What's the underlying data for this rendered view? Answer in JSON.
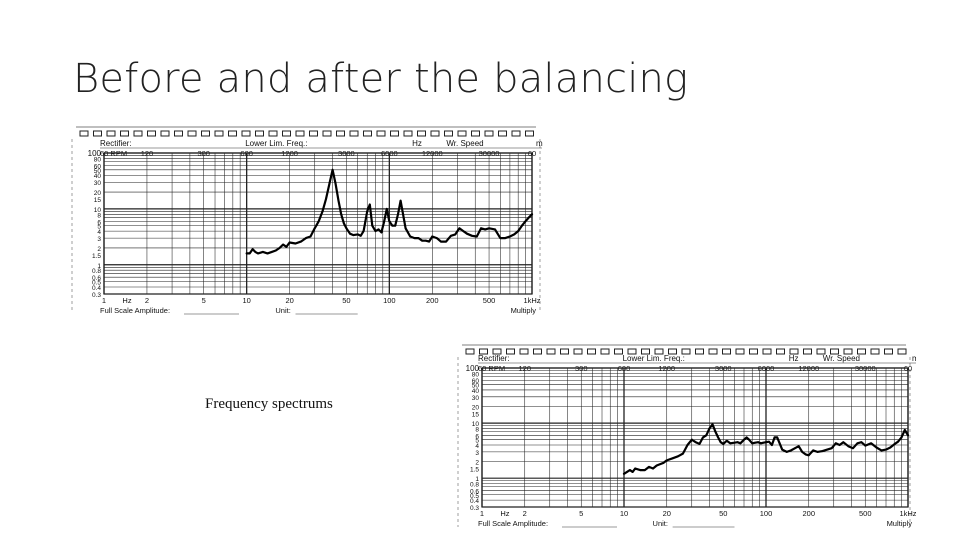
{
  "slide": {
    "title": "Before and after the balancing",
    "caption": "Frequency spectrums"
  },
  "chart_common": {
    "header_labels": [
      "Rectifier:",
      "Lower Lim. Freq.:",
      "Hz",
      "Wr. Speed",
      "m"
    ],
    "rpm_row": [
      "60 RPM",
      "120",
      "300",
      "600",
      "1200",
      "3000",
      "6000",
      "12000",
      "30000",
      "60"
    ],
    "y_ticks": [
      "100",
      "80",
      "60",
      "50",
      "40",
      "30",
      "20",
      "15",
      "10",
      "8",
      "6",
      "5",
      "4",
      "3",
      "2",
      "1.5",
      "1",
      "0.8",
      "0.6",
      "0.5",
      "0.4",
      "0.3"
    ],
    "x_ticks": [
      "1",
      "Hz",
      "2",
      "5",
      "10",
      "20",
      "50",
      "100",
      "200",
      "500",
      "1kHz"
    ],
    "footer_left": "Full Scale Amplitude:",
    "footer_mid": "Unit:",
    "footer_right": "Multiply"
  },
  "chart_data": [
    {
      "type": "line",
      "id": "before",
      "x_scale": "log",
      "y_scale": "log",
      "xlim": [
        1,
        1000
      ],
      "ylim": [
        0.3,
        100
      ],
      "x": [
        10,
        10.5,
        11,
        11.5,
        12,
        13,
        14,
        15,
        16,
        17,
        18,
        19,
        20,
        22,
        24,
        26,
        28,
        30,
        32,
        34,
        36,
        38,
        40,
        42,
        44,
        46,
        48,
        50,
        53,
        56,
        60,
        63,
        66,
        70,
        73,
        76,
        80,
        84,
        88,
        92,
        96,
        100,
        105,
        110,
        115,
        120,
        130,
        140,
        150,
        160,
        170,
        180,
        190,
        200,
        215,
        230,
        250,
        270,
        290,
        310,
        330,
        350,
        380,
        410,
        440,
        470,
        500,
        550,
        600,
        650,
        700,
        750,
        800,
        850,
        900,
        950,
        1000
      ],
      "y": [
        1.6,
        1.6,
        1.9,
        1.7,
        1.6,
        1.7,
        1.6,
        1.7,
        1.8,
        2.0,
        2.3,
        2.1,
        2.5,
        2.4,
        2.6,
        3.0,
        3.2,
        4.5,
        6.0,
        9.0,
        15.0,
        28.0,
        50.0,
        28.0,
        14.0,
        8.0,
        5.5,
        4.5,
        3.6,
        3.4,
        3.5,
        3.3,
        4.0,
        9.0,
        12.0,
        5.0,
        4.0,
        4.3,
        3.8,
        6.0,
        10.0,
        6.0,
        5.0,
        5.0,
        8.0,
        14.0,
        4.5,
        3.2,
        3.0,
        3.0,
        2.7,
        2.7,
        2.6,
        3.2,
        3.0,
        2.6,
        2.6,
        3.3,
        3.5,
        4.5,
        4.0,
        3.6,
        3.3,
        3.2,
        4.5,
        4.3,
        4.5,
        4.3,
        3.0,
        3.0,
        3.2,
        3.5,
        4.0,
        5.0,
        6.0,
        7.0,
        8.0
      ]
    },
    {
      "type": "line",
      "id": "after",
      "x_scale": "log",
      "y_scale": "log",
      "xlim": [
        1,
        1000
      ],
      "ylim": [
        0.3,
        100
      ],
      "x": [
        10,
        10.5,
        11,
        11.5,
        12,
        13,
        14,
        15,
        16,
        17,
        18,
        19,
        20,
        22,
        24,
        26,
        28,
        30,
        32,
        34,
        36,
        38,
        40,
        42,
        44,
        46,
        48,
        50,
        53,
        56,
        60,
        63,
        66,
        70,
        73,
        76,
        80,
        84,
        88,
        92,
        96,
        100,
        105,
        110,
        115,
        120,
        130,
        140,
        150,
        160,
        170,
        180,
        190,
        200,
        215,
        230,
        250,
        270,
        290,
        310,
        330,
        350,
        380,
        410,
        440,
        470,
        500,
        550,
        600,
        650,
        700,
        750,
        800,
        850,
        900,
        950,
        1000
      ],
      "y": [
        1.2,
        1.3,
        1.4,
        1.3,
        1.5,
        1.4,
        1.4,
        1.6,
        1.5,
        1.7,
        1.8,
        1.9,
        2.1,
        2.3,
        2.5,
        2.8,
        4.0,
        5.0,
        4.5,
        4.2,
        5.5,
        6.0,
        8.0,
        9.5,
        7.0,
        5.5,
        4.5,
        4.2,
        4.8,
        4.3,
        4.4,
        4.5,
        4.3,
        5.0,
        5.5,
        5.0,
        4.3,
        4.4,
        4.5,
        4.3,
        4.4,
        4.5,
        4.6,
        4.0,
        5.5,
        5.5,
        3.3,
        3.0,
        3.2,
        3.5,
        3.8,
        3.0,
        2.7,
        2.6,
        3.2,
        3.0,
        3.1,
        3.3,
        3.5,
        4.3,
        4.0,
        4.5,
        3.8,
        3.5,
        4.3,
        4.5,
        3.9,
        4.3,
        3.6,
        3.2,
        3.3,
        3.6,
        4.1,
        4.6,
        5.5,
        7.5,
        6.0
      ]
    }
  ]
}
